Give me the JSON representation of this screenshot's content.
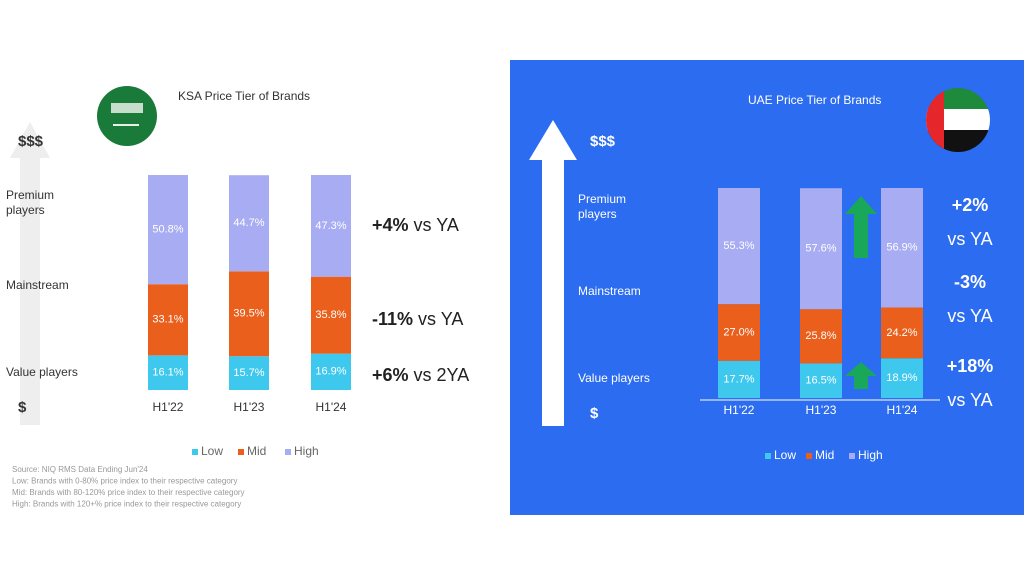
{
  "chart_data": [
    {
      "type": "stacked_bar",
      "title": "KSA Price Tier of Brands",
      "categories": [
        "H1'22",
        "H1'23",
        "H1'24"
      ],
      "series": [
        {
          "name": "Low",
          "color": "#3ec8ee",
          "values": [
            16.1,
            15.7,
            16.9
          ],
          "value_labels": [
            "16.1%",
            "15.7%",
            "16.9%"
          ]
        },
        {
          "name": "Mid",
          "color": "#ea5f1c",
          "values": [
            33.1,
            39.5,
            35.8
          ],
          "value_labels": [
            "33.1%",
            "39.5%",
            "35.8%"
          ]
        },
        {
          "name": "High",
          "color": "#a8acf2",
          "values": [
            50.8,
            44.7,
            47.3
          ],
          "value_labels": [
            "50.8%",
            "44.7%",
            "47.3%"
          ]
        }
      ],
      "ylim": [
        0,
        100
      ],
      "tiers": [
        [
          "$$$"
        ],
        [
          "Premium",
          "players"
        ],
        [
          "Mainstream"
        ],
        [
          "Value players"
        ],
        [
          "$"
        ]
      ],
      "annotations": [
        {
          "change": "+4%",
          "basis": "vs YA"
        },
        {
          "change": "-11%",
          "basis": "vs YA"
        },
        {
          "change": "+6%",
          "basis": "vs 2YA"
        }
      ],
      "notes": [
        "Source: NIQ RMS Data Ending Jun'24",
        "Low: Brands with 0-80% price index to their respective category",
        "Mid: Brands with 80-120% price index to their respective category",
        "High: Brands with 120+% price index to their respective category"
      ]
    },
    {
      "type": "stacked_bar",
      "title": "UAE Price Tier of Brands",
      "categories": [
        "H1'22",
        "H1'23",
        "H1'24"
      ],
      "series": [
        {
          "name": "Low",
          "color": "#3ec8ee",
          "values": [
            17.7,
            16.5,
            18.9
          ],
          "value_labels": [
            "17.7%",
            "16.5%",
            "18.9%"
          ]
        },
        {
          "name": "Mid",
          "color": "#ea5f1c",
          "values": [
            27.0,
            25.8,
            24.2
          ],
          "value_labels": [
            "27.0%",
            "25.8%",
            "24.2%"
          ]
        },
        {
          "name": "High",
          "color": "#a8acf2",
          "values": [
            55.3,
            57.6,
            56.9
          ],
          "value_labels": [
            "55.3%",
            "57.6%",
            "56.9%"
          ]
        }
      ],
      "ylim": [
        0,
        100
      ],
      "tiers": [
        [
          "$$$"
        ],
        [
          "Premium",
          "players"
        ],
        [
          "Mainstream"
        ],
        [
          "Value players"
        ],
        [
          "$"
        ]
      ],
      "annotations": [
        {
          "change": "+2%",
          "basis": "vs YA"
        },
        {
          "change": "-3%",
          "basis": "vs YA"
        },
        {
          "change": "+18%",
          "basis": "vs YA"
        }
      ]
    }
  ]
}
